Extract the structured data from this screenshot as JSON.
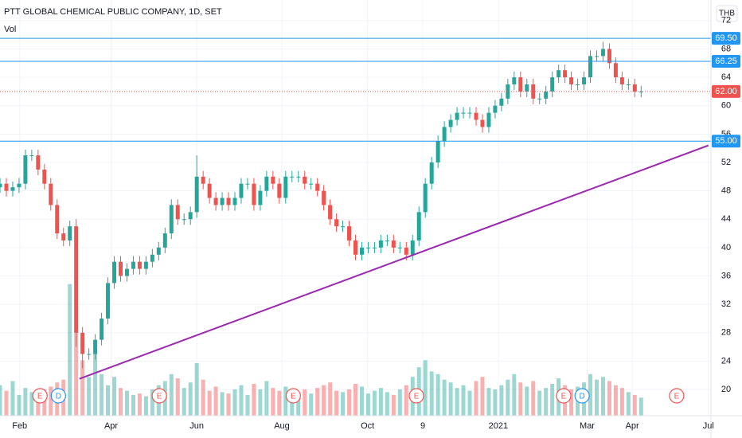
{
  "chart_data": {
    "type": "candlestick",
    "title": "PTT GLOBAL CHEMICAL PUBLIC COMPANY, 1D, SET",
    "subtitle": "Vol",
    "currency": "THB",
    "up_color": "#26a69a",
    "down_color": "#ef5350",
    "grid": true,
    "xlim": [
      0,
      112
    ],
    "ylim": [
      16.3,
      74.9
    ],
    "volume_lim": [
      0,
      100
    ],
    "yticks": [
      20,
      24,
      28,
      32,
      36,
      40,
      44,
      48,
      52,
      56,
      60,
      64,
      68,
      72
    ],
    "xticks": [
      {
        "value": 3.1,
        "label": "Feb"
      },
      {
        "value": 17.5,
        "label": "Apr"
      },
      {
        "value": 31,
        "label": "Jun"
      },
      {
        "value": 44.4,
        "label": "Aug"
      },
      {
        "value": 57.9,
        "label": "Oct"
      },
      {
        "value": 66.6,
        "label": "9"
      },
      {
        "value": 78.5,
        "label": "2021"
      },
      {
        "value": 92.5,
        "label": "Mar"
      },
      {
        "value": 99.6,
        "label": "Apr"
      },
      {
        "value": 111.6,
        "label": "Jul"
      }
    ],
    "open": [
      48.5,
      49,
      48,
      48.5,
      49,
      53,
      53,
      51,
      49,
      46,
      42,
      41,
      43,
      28,
      25,
      25,
      27,
      30,
      35,
      38,
      36,
      37,
      38,
      37,
      38,
      39,
      40,
      42,
      46,
      44,
      44,
      45,
      50,
      49,
      47,
      46,
      47,
      46,
      47,
      49,
      49,
      46,
      48,
      50,
      49,
      47,
      50,
      50,
      50,
      49,
      49,
      48,
      46,
      44,
      43,
      43,
      41,
      39,
      40,
      40,
      40,
      41,
      41,
      40,
      40,
      39,
      41,
      45,
      49,
      52,
      55,
      57,
      58,
      59,
      59,
      59,
      58,
      57,
      59,
      60,
      61,
      63,
      64,
      62,
      63,
      61,
      61,
      62,
      64,
      65,
      64,
      63,
      63,
      64,
      67,
      67,
      68,
      66,
      64,
      63,
      63,
      62
    ],
    "high": [
      49.8,
      49.8,
      49.3,
      49.8,
      53.8,
      53.8,
      53.8,
      51.8,
      49.8,
      46.8,
      42.8,
      43.8,
      44,
      28.8,
      25.8,
      27.8,
      30.8,
      35.8,
      38.8,
      38.8,
      37.8,
      38.8,
      38.8,
      38.8,
      39.8,
      40.8,
      42.8,
      46.8,
      46.8,
      44.8,
      45.8,
      53,
      50.8,
      49.8,
      47.8,
      47.8,
      47.8,
      47.8,
      49.8,
      49.8,
      49.8,
      48.8,
      50.8,
      50.8,
      49.8,
      50.8,
      50.8,
      50.8,
      50.8,
      49.8,
      49.8,
      48.8,
      46.8,
      44.8,
      43.8,
      43.8,
      41.8,
      40.8,
      40.8,
      40.8,
      41.8,
      41.8,
      41.8,
      40.8,
      40.8,
      41.8,
      45.8,
      49.8,
      52.8,
      55.8,
      57.8,
      58.8,
      59.8,
      59.8,
      59.8,
      59.8,
      58.8,
      59.8,
      60.8,
      61.8,
      63.8,
      64.8,
      64.8,
      63.8,
      63.8,
      61.8,
      62.8,
      64.8,
      65.8,
      65.8,
      64.8,
      63.8,
      64.8,
      67.8,
      67.8,
      69,
      68.8,
      66.8,
      64.8,
      63.8,
      63.8,
      62.8
    ],
    "low": [
      47.7,
      47.2,
      47.2,
      47.7,
      48.2,
      52.2,
      50.2,
      48.2,
      45.2,
      41.2,
      40.2,
      40.2,
      26,
      23,
      24.2,
      24.2,
      26.2,
      29.2,
      34.2,
      35.2,
      35.2,
      36.2,
      36.2,
      36.2,
      37.2,
      38.2,
      39.2,
      41.2,
      43.2,
      43.2,
      43.2,
      44.2,
      48.2,
      46.2,
      45.2,
      45.2,
      45.2,
      45.2,
      46.2,
      48.2,
      45.2,
      45.2,
      47.2,
      48.2,
      46.2,
      46.2,
      49.2,
      49.2,
      48.2,
      48.2,
      47.2,
      45.2,
      43.2,
      42.2,
      42.2,
      40.2,
      38.2,
      38.2,
      39.2,
      39.2,
      39.2,
      40.2,
      39.2,
      39.2,
      38.2,
      38.2,
      40.2,
      44.2,
      48.2,
      51.2,
      54.2,
      56.2,
      57.2,
      58.2,
      58.2,
      57.2,
      56.2,
      56.2,
      58.2,
      59.2,
      60.2,
      62.2,
      61.2,
      61.2,
      60.2,
      60.2,
      60.2,
      61.2,
      63.2,
      63.2,
      62.2,
      62.2,
      62.2,
      63.2,
      66.2,
      66.2,
      65.2,
      63.2,
      62.2,
      62.2,
      61.2,
      61.2
    ],
    "close": [
      49,
      48,
      48.5,
      49,
      53,
      53,
      51,
      49,
      46,
      42,
      41,
      43,
      28,
      25,
      25,
      27,
      30,
      35,
      38,
      36,
      37,
      38,
      37,
      38,
      39,
      40,
      42,
      46,
      44,
      44,
      45,
      50,
      49,
      47,
      46,
      47,
      46,
      47,
      49,
      49,
      46,
      48,
      50,
      49,
      47,
      50,
      50,
      50,
      49,
      49,
      48,
      46,
      44,
      43,
      43,
      41,
      39,
      40,
      40,
      40,
      41,
      41,
      40,
      40,
      39,
      41,
      45,
      49,
      52,
      55,
      57,
      58,
      59,
      59,
      59,
      58,
      57,
      59,
      60,
      61,
      63,
      64,
      62,
      63,
      61,
      61,
      62,
      64,
      65,
      64,
      63,
      63,
      64,
      67,
      67,
      68,
      66,
      64,
      63,
      63,
      62,
      62
    ],
    "volume": [
      22,
      18,
      25,
      15,
      20,
      17,
      14,
      19,
      21,
      24,
      26,
      95,
      60,
      40,
      28,
      45,
      30,
      22,
      28,
      20,
      18,
      15,
      16,
      14,
      19,
      22,
      25,
      30,
      27,
      20,
      24,
      38,
      26,
      18,
      21,
      17,
      16,
      19,
      22,
      15,
      23,
      19,
      25,
      20,
      18,
      21,
      17,
      15,
      19,
      16,
      20,
      22,
      24,
      18,
      17,
      19,
      23,
      21,
      16,
      18,
      20,
      17,
      15,
      19,
      22,
      28,
      35,
      40,
      32,
      30,
      26,
      24,
      20,
      22,
      18,
      25,
      28,
      20,
      19,
      22,
      26,
      30,
      24,
      21,
      25,
      18,
      20,
      23,
      27,
      22,
      19,
      21,
      24,
      30,
      26,
      28,
      25,
      22,
      20,
      17,
      15,
      13
    ],
    "levels": [
      {
        "value": 69.5,
        "label": "69.50",
        "color": "#2196f3",
        "style": "solid"
      },
      {
        "value": 66.25,
        "label": "66.25",
        "color": "#2196f3",
        "style": "solid"
      },
      {
        "value": 55,
        "label": "55.00",
        "color": "#2196f3",
        "style": "solid"
      },
      {
        "value": 62,
        "label": "62.00",
        "color": "#ef5350",
        "style": "dotted"
      }
    ],
    "trendline": {
      "color": "#9c27b0",
      "x": [
        12.5,
        111.6
      ],
      "y": [
        21.5,
        54.4
      ]
    },
    "events": [
      {
        "x": 6.3,
        "label": "E",
        "color": "#ef5350"
      },
      {
        "x": 9.2,
        "label": "D",
        "color": "#2196f3"
      },
      {
        "x": 25.1,
        "label": "E",
        "color": "#ef5350"
      },
      {
        "x": 46.2,
        "label": "E",
        "color": "#ef5350"
      },
      {
        "x": 65.6,
        "label": "E",
        "color": "#ef5350"
      },
      {
        "x": 88.8,
        "label": "E",
        "color": "#ef5350"
      },
      {
        "x": 91.7,
        "label": "D",
        "color": "#2196f3"
      },
      {
        "x": 106.6,
        "label": "E",
        "color": "#ef5350"
      }
    ]
  }
}
